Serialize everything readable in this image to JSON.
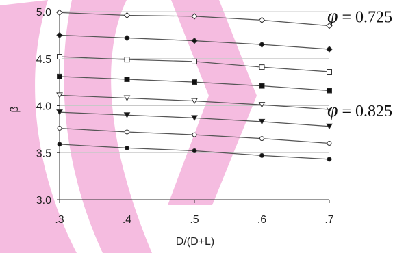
{
  "chart_data": {
    "type": "line",
    "title": "",
    "xlabel": "D/(D+L)",
    "ylabel": "β",
    "x": [
      0.3,
      0.4,
      0.5,
      0.6,
      0.7
    ],
    "x_tick_labels": [
      ".3",
      ".4",
      ".5",
      ".6",
      ".7"
    ],
    "y_tick_labels": [
      "3.0",
      "3.5",
      "4.0",
      "4.5",
      "5.0"
    ],
    "xlim": [
      0.3,
      0.7
    ],
    "ylim": [
      3.0,
      5.0
    ],
    "y_ticks": [
      3.0,
      3.5,
      4.0,
      4.5,
      5.0
    ],
    "grid": "horizontal",
    "annotations": [
      {
        "symbol": "φ",
        "text": " = 0.725",
        "near_y": 4.96
      },
      {
        "symbol": "φ",
        "text": " = 0.825",
        "near_y": 3.96
      }
    ],
    "series": [
      {
        "values": [
          4.99,
          4.96,
          4.95,
          4.91,
          4.85
        ],
        "marker": "diamond-open"
      },
      {
        "values": [
          4.75,
          4.72,
          4.69,
          4.65,
          4.6
        ],
        "marker": "diamond-filled"
      },
      {
        "values": [
          4.52,
          4.49,
          4.47,
          4.41,
          4.36
        ],
        "marker": "square-open"
      },
      {
        "values": [
          4.31,
          4.28,
          4.25,
          4.21,
          4.16
        ],
        "marker": "square-filled"
      },
      {
        "values": [
          4.11,
          4.08,
          4.05,
          4.01,
          3.96
        ],
        "marker": "triangle-down-open"
      },
      {
        "values": [
          3.93,
          3.9,
          3.87,
          3.83,
          3.78
        ],
        "marker": "triangle-down-filled"
      },
      {
        "values": [
          3.76,
          3.72,
          3.69,
          3.65,
          3.6
        ],
        "marker": "circle-open"
      },
      {
        "values": [
          3.59,
          3.55,
          3.52,
          3.47,
          3.43
        ],
        "marker": "circle-filled"
      }
    ],
    "colors": {
      "line": "#555555",
      "grid": "#c8c8c8",
      "watermark": "#f2a6d6"
    }
  }
}
